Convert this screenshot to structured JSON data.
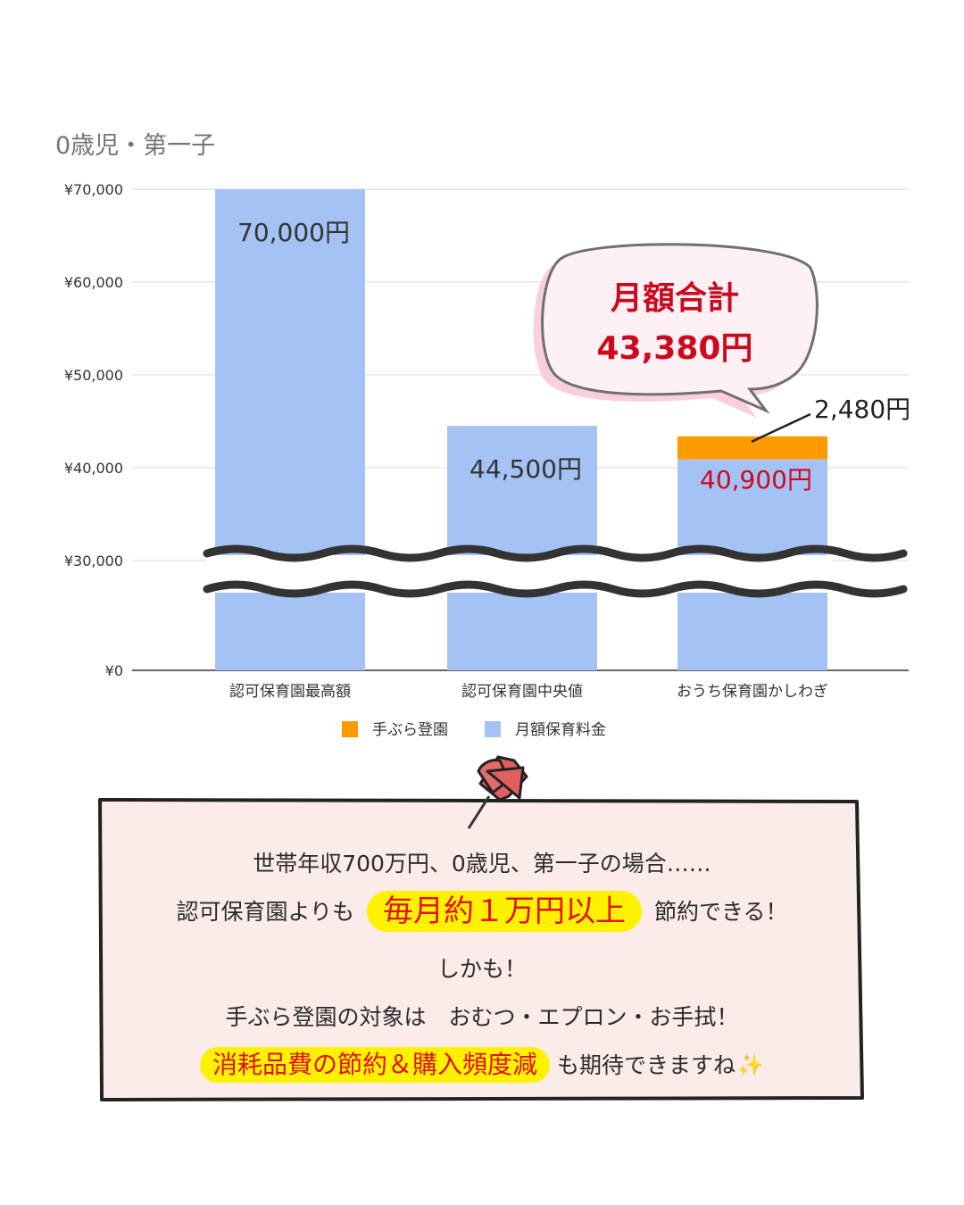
{
  "chart_data": {
    "type": "bar",
    "title": "0歳児・第一子",
    "categories": [
      "認可保育園最高額",
      "認可保育園中央値",
      "おうち保育園かしわぎ"
    ],
    "series": [
      {
        "name": "月額保育料金",
        "color": "#a4c2f4",
        "values": [
          70000,
          44500,
          40900
        ]
      },
      {
        "name": "手ぶら登園",
        "color": "#ff9900",
        "values": [
          0,
          0,
          2480
        ]
      }
    ],
    "stacked": true,
    "yticks": [
      "¥0",
      "¥30,000",
      "¥40,000",
      "¥50,000",
      "¥60,000",
      "¥70,000"
    ],
    "ylim": [
      0,
      70000
    ],
    "axis_break": [
      0,
      30000
    ],
    "grid": true,
    "legend_position": "bottom",
    "legend": [
      {
        "name": "手ぶら登園",
        "color": "#ff9900"
      },
      {
        "name": "月額保育料金",
        "color": "#a4c2f4"
      }
    ],
    "data_labels": [
      "70,000円",
      "44,500円",
      "40,900円"
    ],
    "extra_label": "2,480円",
    "callout": {
      "line1": "月額合計",
      "line2": "43,380円"
    }
  },
  "note": {
    "line1": "世帯年収700万円、0歳児、第一子の場合……",
    "line2_pre": "認可保育園よりも",
    "line2_highlight": "毎月約１万円以上",
    "line2_post": "節約できる！",
    "line3": "しかも！",
    "line4": "手ぶら登園の対象は　おむつ・エプロン・お手拭！",
    "line5_highlight": "消耗品費の節約＆購入頻度減",
    "line5_post": "も期待できますね",
    "line5_emoji": "✨"
  },
  "colors": {
    "bar_blue": "#a4c2f4",
    "bar_orange": "#ff9900",
    "accent_red": "#cc0a1e",
    "callout_fill": "#fbe2ec",
    "note_fill": "#fbecea",
    "highlight": "#fff200",
    "pin": "#e06060"
  },
  "icons": {
    "pin": "pushpin-icon",
    "sparkle": "sparkles-icon"
  }
}
